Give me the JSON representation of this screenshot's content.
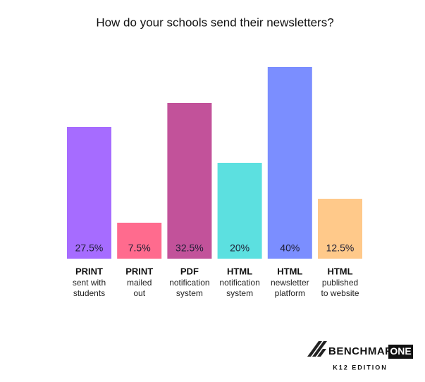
{
  "chart_data": {
    "type": "bar",
    "title": "How do your schools send their newsletters?",
    "categories": [
      "PRINT",
      "PRINT",
      "PDF",
      "HTML",
      "HTML",
      "HTML"
    ],
    "category_notes": [
      [
        "sent with",
        "students"
      ],
      [
        "mailed",
        "out"
      ],
      [
        "notification",
        "system"
      ],
      [
        "notification",
        "system"
      ],
      [
        "newsletter",
        "platform"
      ],
      [
        "published",
        "to website"
      ]
    ],
    "values": [
      27.5,
      7.5,
      32.5,
      20,
      40,
      12.5
    ],
    "value_labels": [
      "27.5%",
      "7.5%",
      "32.5%",
      "20%",
      "40%",
      "12.5%"
    ],
    "colors": [
      "#a66cff",
      "#ff6b8e",
      "#c2529a",
      "#5ce0e0",
      "#7b8eff",
      "#ffc98a"
    ]
  },
  "logo": {
    "name": "BENCHMARK",
    "badge": "ONE",
    "edition": "K12 EDITION"
  }
}
